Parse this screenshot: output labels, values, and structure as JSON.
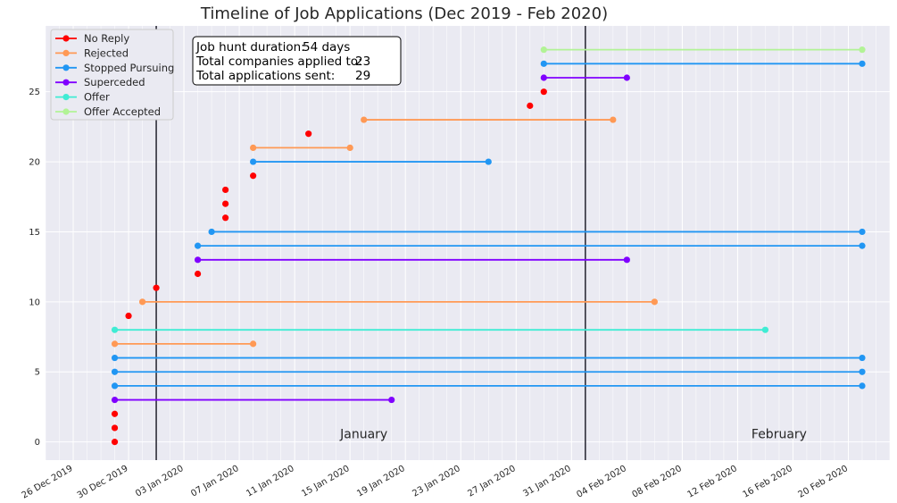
{
  "chart_data": {
    "type": "line",
    "title": "Timeline of Job Applications (Dec 2019 - Feb 2020)",
    "xlabel": "",
    "ylabel": "",
    "x_type": "date",
    "xlim": [
      "2019-12-24",
      "2020-02-23"
    ],
    "ylim": [
      -1.3,
      29.7
    ],
    "grid": true,
    "legend_position": "upper-left",
    "x_ticks": [
      {
        "date": "2019-12-26",
        "label": "26 Dec 2019"
      },
      {
        "date": "2019-12-30",
        "label": "30 Dec 2019"
      },
      {
        "date": "2020-01-03",
        "label": "03 Jan 2020"
      },
      {
        "date": "2020-01-07",
        "label": "07 Jan 2020"
      },
      {
        "date": "2020-01-11",
        "label": "11 Jan 2020"
      },
      {
        "date": "2020-01-15",
        "label": "15 Jan 2020"
      },
      {
        "date": "2020-01-19",
        "label": "19 Jan 2020"
      },
      {
        "date": "2020-01-23",
        "label": "23 Jan 2020"
      },
      {
        "date": "2020-01-27",
        "label": "27 Jan 2020"
      },
      {
        "date": "2020-01-31",
        "label": "31 Jan 2020"
      },
      {
        "date": "2020-02-04",
        "label": "04 Feb 2020"
      },
      {
        "date": "2020-02-08",
        "label": "08 Feb 2020"
      },
      {
        "date": "2020-02-12",
        "label": "12 Feb 2020"
      },
      {
        "date": "2020-02-16",
        "label": "16 Feb 2020"
      },
      {
        "date": "2020-02-20",
        "label": "20 Feb 2020"
      }
    ],
    "y_ticks": [
      0,
      5,
      10,
      15,
      20,
      25
    ],
    "month_dividers": [
      "2020-01-01",
      "2020-02-01"
    ],
    "month_labels": [
      {
        "text": "January",
        "date": "2020-01-16",
        "y": 0.25
      },
      {
        "text": "February",
        "date": "2020-02-15",
        "y": 0.25
      }
    ],
    "categories": [
      {
        "name": "No Reply",
        "color": "#ff0000"
      },
      {
        "name": "Rejected",
        "color": "#ff9955"
      },
      {
        "name": "Stopped Pursuing",
        "color": "#2196f3"
      },
      {
        "name": "Superceded",
        "color": "#8000ff"
      },
      {
        "name": "Offer",
        "color": "#40ecd4"
      },
      {
        "name": "Offer Accepted",
        "color": "#b2f396"
      }
    ],
    "applications": [
      {
        "id": 0,
        "status": "No Reply",
        "start": "2019-12-29",
        "end": null
      },
      {
        "id": 1,
        "status": "No Reply",
        "start": "2019-12-29",
        "end": null
      },
      {
        "id": 2,
        "status": "No Reply",
        "start": "2019-12-29",
        "end": null
      },
      {
        "id": 3,
        "status": "Superceded",
        "start": "2019-12-29",
        "end": "2020-01-18"
      },
      {
        "id": 4,
        "status": "Stopped Pursuing",
        "start": "2019-12-29",
        "end": "2020-02-21"
      },
      {
        "id": 5,
        "status": "Stopped Pursuing",
        "start": "2019-12-29",
        "end": "2020-02-21"
      },
      {
        "id": 6,
        "status": "Stopped Pursuing",
        "start": "2019-12-29",
        "end": "2020-02-21"
      },
      {
        "id": 7,
        "status": "Rejected",
        "start": "2019-12-29",
        "end": "2020-01-08"
      },
      {
        "id": 8,
        "status": "Offer",
        "start": "2019-12-29",
        "end": "2020-02-14"
      },
      {
        "id": 9,
        "status": "No Reply",
        "start": "2019-12-30",
        "end": null
      },
      {
        "id": 10,
        "status": "Rejected",
        "start": "2019-12-31",
        "end": "2020-02-06"
      },
      {
        "id": 11,
        "status": "No Reply",
        "start": "2020-01-01",
        "end": null
      },
      {
        "id": 12,
        "status": "No Reply",
        "start": "2020-01-04",
        "end": null
      },
      {
        "id": 13,
        "status": "Superceded",
        "start": "2020-01-04",
        "end": "2020-02-04"
      },
      {
        "id": 14,
        "status": "Stopped Pursuing",
        "start": "2020-01-04",
        "end": "2020-02-21"
      },
      {
        "id": 15,
        "status": "Stopped Pursuing",
        "start": "2020-01-05",
        "end": "2020-02-21"
      },
      {
        "id": 16,
        "status": "No Reply",
        "start": "2020-01-06",
        "end": null
      },
      {
        "id": 17,
        "status": "No Reply",
        "start": "2020-01-06",
        "end": null
      },
      {
        "id": 18,
        "status": "No Reply",
        "start": "2020-01-06",
        "end": null
      },
      {
        "id": 19,
        "status": "No Reply",
        "start": "2020-01-08",
        "end": null
      },
      {
        "id": 20,
        "status": "Stopped Pursuing",
        "start": "2020-01-08",
        "end": "2020-01-25"
      },
      {
        "id": 21,
        "status": "Rejected",
        "start": "2020-01-08",
        "end": "2020-01-15"
      },
      {
        "id": 22,
        "status": "No Reply",
        "start": "2020-01-12",
        "end": null
      },
      {
        "id": 23,
        "status": "Rejected",
        "start": "2020-01-16",
        "end": "2020-02-03"
      },
      {
        "id": 24,
        "status": "No Reply",
        "start": "2020-01-28",
        "end": null
      },
      {
        "id": 25,
        "status": "No Reply",
        "start": "2020-01-29",
        "end": null
      },
      {
        "id": 26,
        "status": "Superceded",
        "start": "2020-01-29",
        "end": "2020-02-04"
      },
      {
        "id": 27,
        "status": "Stopped Pursuing",
        "start": "2020-01-29",
        "end": "2020-02-21"
      },
      {
        "id": 28,
        "status": "Offer Accepted",
        "start": "2020-01-29",
        "end": "2020-02-21"
      }
    ],
    "stats": {
      "duration_label": "Job hunt duration:",
      "duration_value": "54 days",
      "companies_label": "Total companies applied to:",
      "companies_value": "23",
      "applications_label": "Total applications sent:",
      "applications_value": "29"
    }
  }
}
